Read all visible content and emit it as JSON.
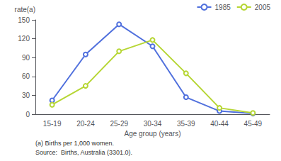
{
  "chart_data": {
    "type": "line",
    "ylabel": "rate(a)",
    "xlabel": "Age group (years)",
    "categories": [
      "15-19",
      "20-24",
      "25-29",
      "30-34",
      "35-39",
      "40-44",
      "45-49"
    ],
    "series": [
      {
        "name": "1985",
        "values": [
          22,
          95,
          143,
          108,
          27,
          5,
          1
        ]
      },
      {
        "name": "2005",
        "values": [
          15,
          45,
          100,
          118,
          65,
          10,
          2
        ]
      }
    ],
    "ylim": [
      0,
      150
    ],
    "yticks": [
      0,
      30,
      60,
      90,
      120,
      150
    ],
    "grid": false,
    "legend": "upper right",
    "annotations": [
      "(a) Births per 1,000 women.",
      "Source:  Births, Australia (3301.0)."
    ]
  }
}
